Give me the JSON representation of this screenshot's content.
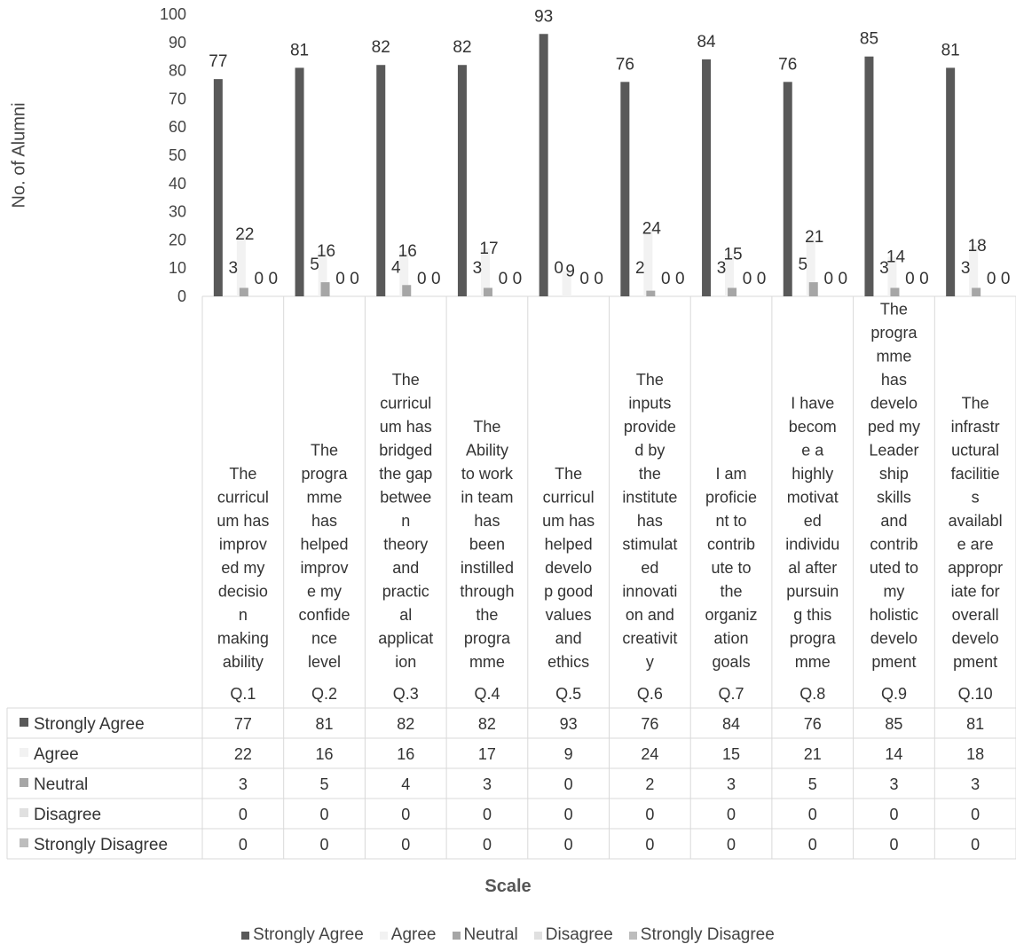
{
  "chart_data": {
    "type": "bar",
    "ylabel": "No. of Alumni",
    "xlabel": "Scale",
    "ylim": [
      0,
      100
    ],
    "yticks": [
      0,
      10,
      20,
      30,
      40,
      50,
      60,
      70,
      80,
      90,
      100
    ],
    "grid": false,
    "legend_position": "bottom",
    "categories": [
      "Q.1",
      "Q.2",
      "Q.3",
      "Q.4",
      "Q.5",
      "Q.6",
      "Q.7",
      "Q.8",
      "Q.9",
      "Q.10"
    ],
    "category_lines": [
      [
        "The",
        "curricul",
        "um has",
        "improv",
        "ed my",
        "decisio",
        "n",
        "making",
        "ability"
      ],
      [
        "The",
        "progra",
        "mme",
        "has",
        "helped",
        "improv",
        "e my",
        "confide",
        "nce",
        "level"
      ],
      [
        "The",
        "curricul",
        "um has",
        "bridged",
        "the gap",
        "betwee",
        "n",
        "theory",
        "and",
        "practic",
        "al",
        "applicat",
        "ion"
      ],
      [
        "The",
        "Ability",
        "to work",
        "in team",
        "has",
        "been",
        "instilled",
        "through",
        "the",
        "progra",
        "mme"
      ],
      [
        "The",
        "curricul",
        "um has",
        "helped",
        "develo",
        "p good",
        "values",
        "and",
        "ethics"
      ],
      [
        "The",
        "inputs",
        "provide",
        "d by",
        "the",
        "institute",
        "has",
        "stimulat",
        "ed",
        "innovati",
        "on and",
        "creativit",
        "y"
      ],
      [
        "I am",
        "proficie",
        "nt to",
        "contrib",
        "ute to",
        "the",
        "organiz",
        "ation",
        "goals"
      ],
      [
        "I have",
        "becom",
        "e a",
        "highly",
        "motivat",
        "ed",
        "individu",
        "al after",
        "pursuin",
        "g this",
        "progra",
        "mme"
      ],
      [
        "The",
        "progra",
        "mme",
        "has",
        "develo",
        "ped my",
        "Leader",
        "ship",
        "skills",
        "and",
        "contrib",
        "uted to",
        "my",
        "holistic",
        "develo",
        "pment"
      ],
      [
        "The",
        "infrastr",
        "uctural",
        "facilitie",
        "s",
        "availabl",
        "e are",
        "appropr",
        "iate for",
        "overall",
        "develo",
        "pment"
      ]
    ],
    "series": [
      {
        "name": "Strongly Agree",
        "color": "#595959",
        "values": [
          77,
          81,
          82,
          82,
          93,
          76,
          84,
          76,
          85,
          81
        ]
      },
      {
        "name": "Agree",
        "color": "#f2f2f2",
        "values": [
          22,
          16,
          16,
          17,
          9,
          24,
          15,
          21,
          14,
          18
        ]
      },
      {
        "name": "Neutral",
        "color": "#a6a6a6",
        "values": [
          3,
          5,
          4,
          3,
          0,
          2,
          3,
          5,
          3,
          3
        ]
      },
      {
        "name": "Disagree",
        "color": "#e0e0e0",
        "values": [
          0,
          0,
          0,
          0,
          0,
          0,
          0,
          0,
          0,
          0
        ]
      },
      {
        "name": "Strongly Disagree",
        "color": "#bdbdbd",
        "values": [
          0,
          0,
          0,
          0,
          0,
          0,
          0,
          0,
          0,
          0
        ]
      }
    ]
  }
}
